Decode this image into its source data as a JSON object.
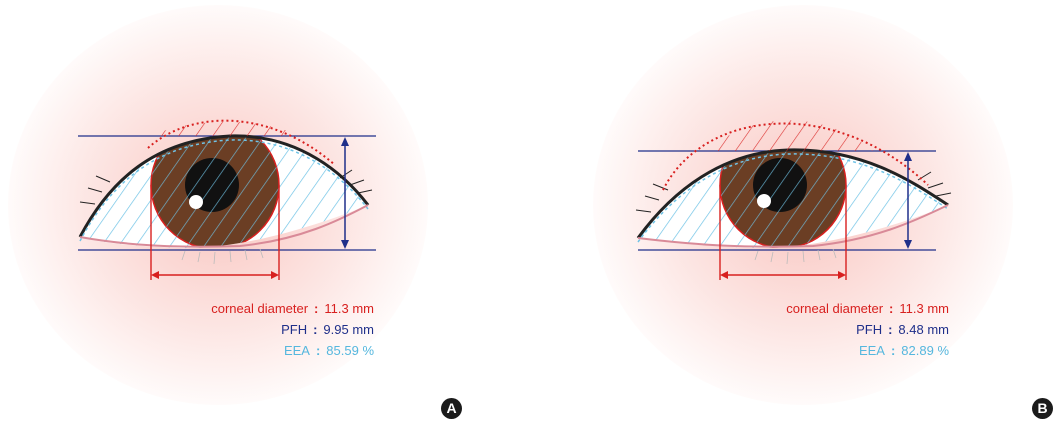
{
  "panels": [
    {
      "letter": "A",
      "corneal_label": "corneal diameter",
      "corneal_value": "11.3 mm",
      "pfh_label": "PFH",
      "pfh_value": "9.95 mm",
      "eea_label": "EEA",
      "eea_value": "85.59 %"
    },
    {
      "letter": "B",
      "corneal_label": "corneal diameter",
      "corneal_value": "11.3 mm",
      "pfh_label": "PFH",
      "pfh_value": "8.48 mm",
      "eea_label": "EEA",
      "eea_value": "82.89 %"
    }
  ],
  "separator": ":",
  "colors": {
    "corneal": "#d8201f",
    "pfh": "#1f2f8a",
    "eea": "#55b7de",
    "iris": "#6b3e24",
    "background_glow": "#f4968c"
  }
}
